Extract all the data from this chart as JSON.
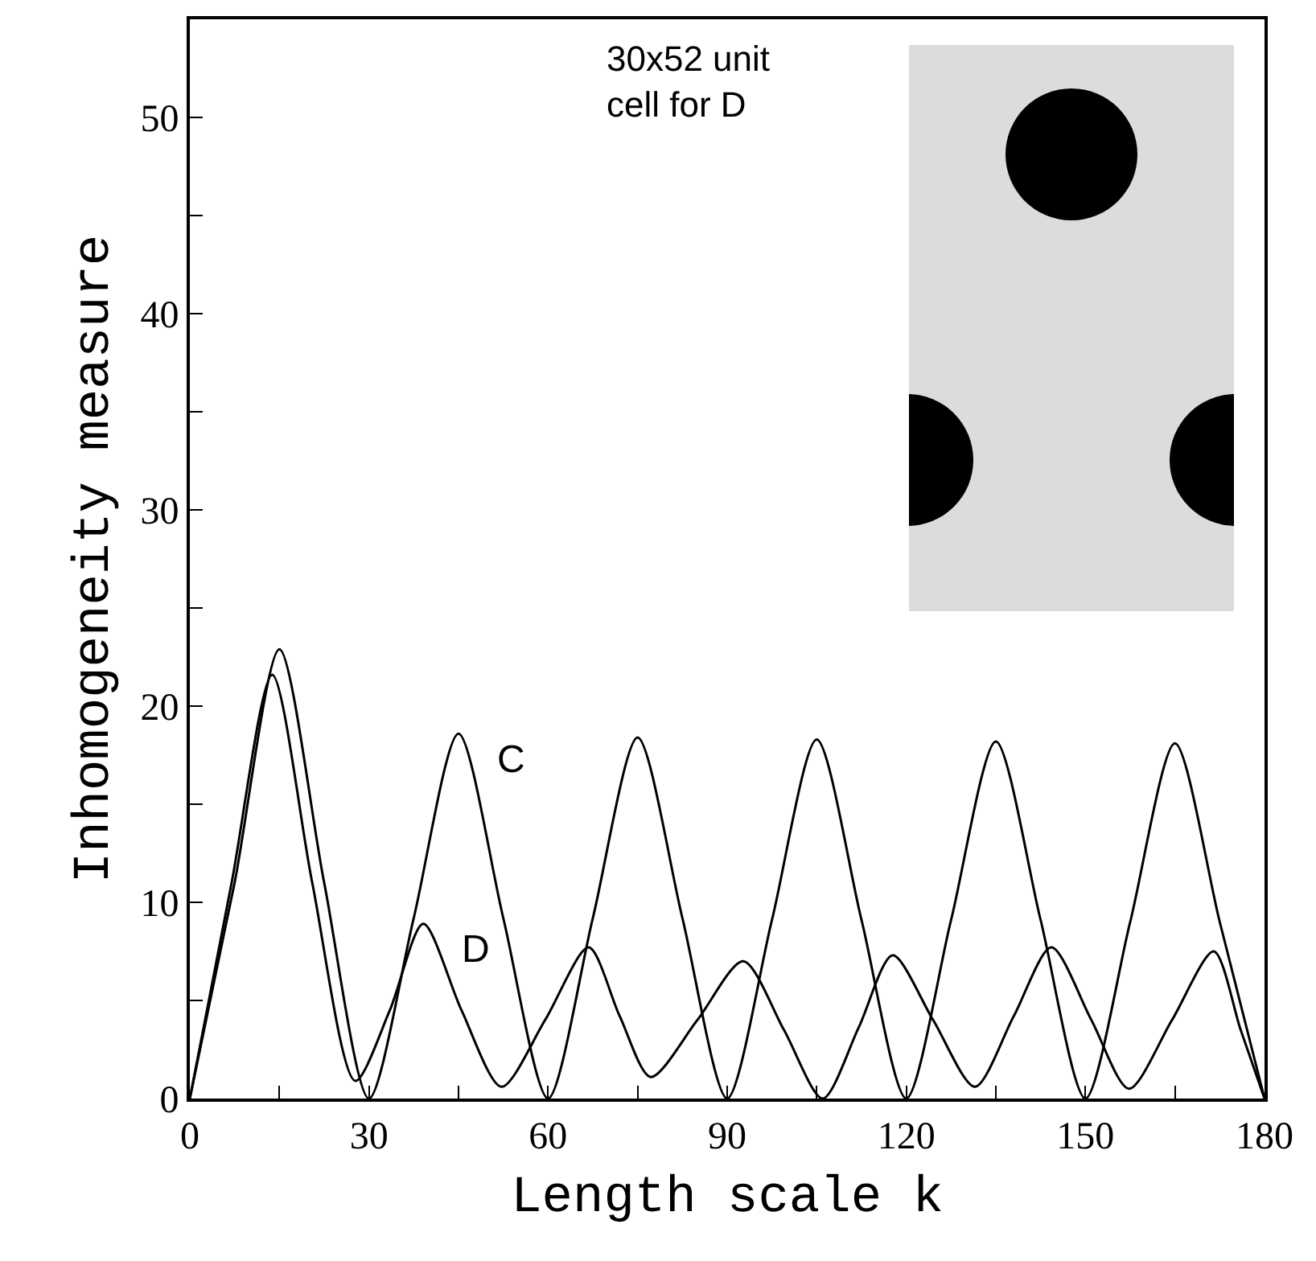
{
  "chart_data": {
    "type": "line",
    "xlabel": "Length scale k",
    "ylabel": "Inhomogeneity measure",
    "xlim": [
      0,
      180
    ],
    "ylim": [
      0,
      55
    ],
    "xticks": [
      0,
      {
        "value": 15,
        "label": null
      },
      30,
      {
        "value": 45,
        "label": null
      },
      60,
      {
        "value": 75,
        "label": null
      },
      90,
      {
        "value": 105,
        "label": null
      },
      120,
      {
        "value": 135,
        "label": null
      },
      150,
      {
        "value": 165,
        "label": null
      },
      180
    ],
    "yticks": [
      0,
      {
        "value": 5,
        "label": null
      },
      10,
      {
        "value": 15,
        "label": null
      },
      20,
      {
        "value": 25,
        "label": null
      },
      30,
      {
        "value": 35,
        "label": null
      },
      40,
      {
        "value": 45,
        "label": null
      },
      50
    ],
    "grid": false,
    "legend": false,
    "marker": "none",
    "line_style": "solid",
    "series": [
      {
        "name": "C",
        "color": "#000000",
        "x": [
          0,
          7.5,
          15,
          22.5,
          30,
          37.5,
          45,
          52.5,
          60,
          67.5,
          75,
          82.5,
          90,
          97.5,
          105,
          112.5,
          120,
          127.5,
          135,
          142.5,
          150,
          157.5,
          165,
          172.5,
          180
        ],
        "values": [
          0,
          11,
          22.9,
          11,
          0,
          9.2,
          18.6,
          9.2,
          0,
          9.2,
          18.4,
          9.2,
          0,
          9.1,
          18.3,
          9.1,
          0,
          9.1,
          18.2,
          9.1,
          0,
          9,
          18.1,
          9,
          0
        ]
      },
      {
        "name": "D",
        "color": "#000000",
        "x": [
          0,
          7,
          13.8,
          20.5,
          27.7,
          33.5,
          39.1,
          45.5,
          52.2,
          59.5,
          66.8,
          72,
          77.2,
          85,
          92.7,
          99.5,
          106,
          112,
          117.7,
          124.5,
          131.5,
          138,
          144.3,
          151,
          157.3,
          164.5,
          171.5,
          176,
          180
        ],
        "values": [
          0,
          11,
          21.6,
          11,
          0.9,
          4.5,
          8.9,
          4.5,
          0.6,
          4,
          7.7,
          4.2,
          1.1,
          4,
          7,
          3.5,
          0,
          3.6,
          7.3,
          4,
          0.6,
          4.2,
          7.7,
          4,
          0.5,
          4,
          7.5,
          3.5,
          0
        ]
      }
    ],
    "annotations": [
      "30x52 unit\ncell for D"
    ]
  }
}
